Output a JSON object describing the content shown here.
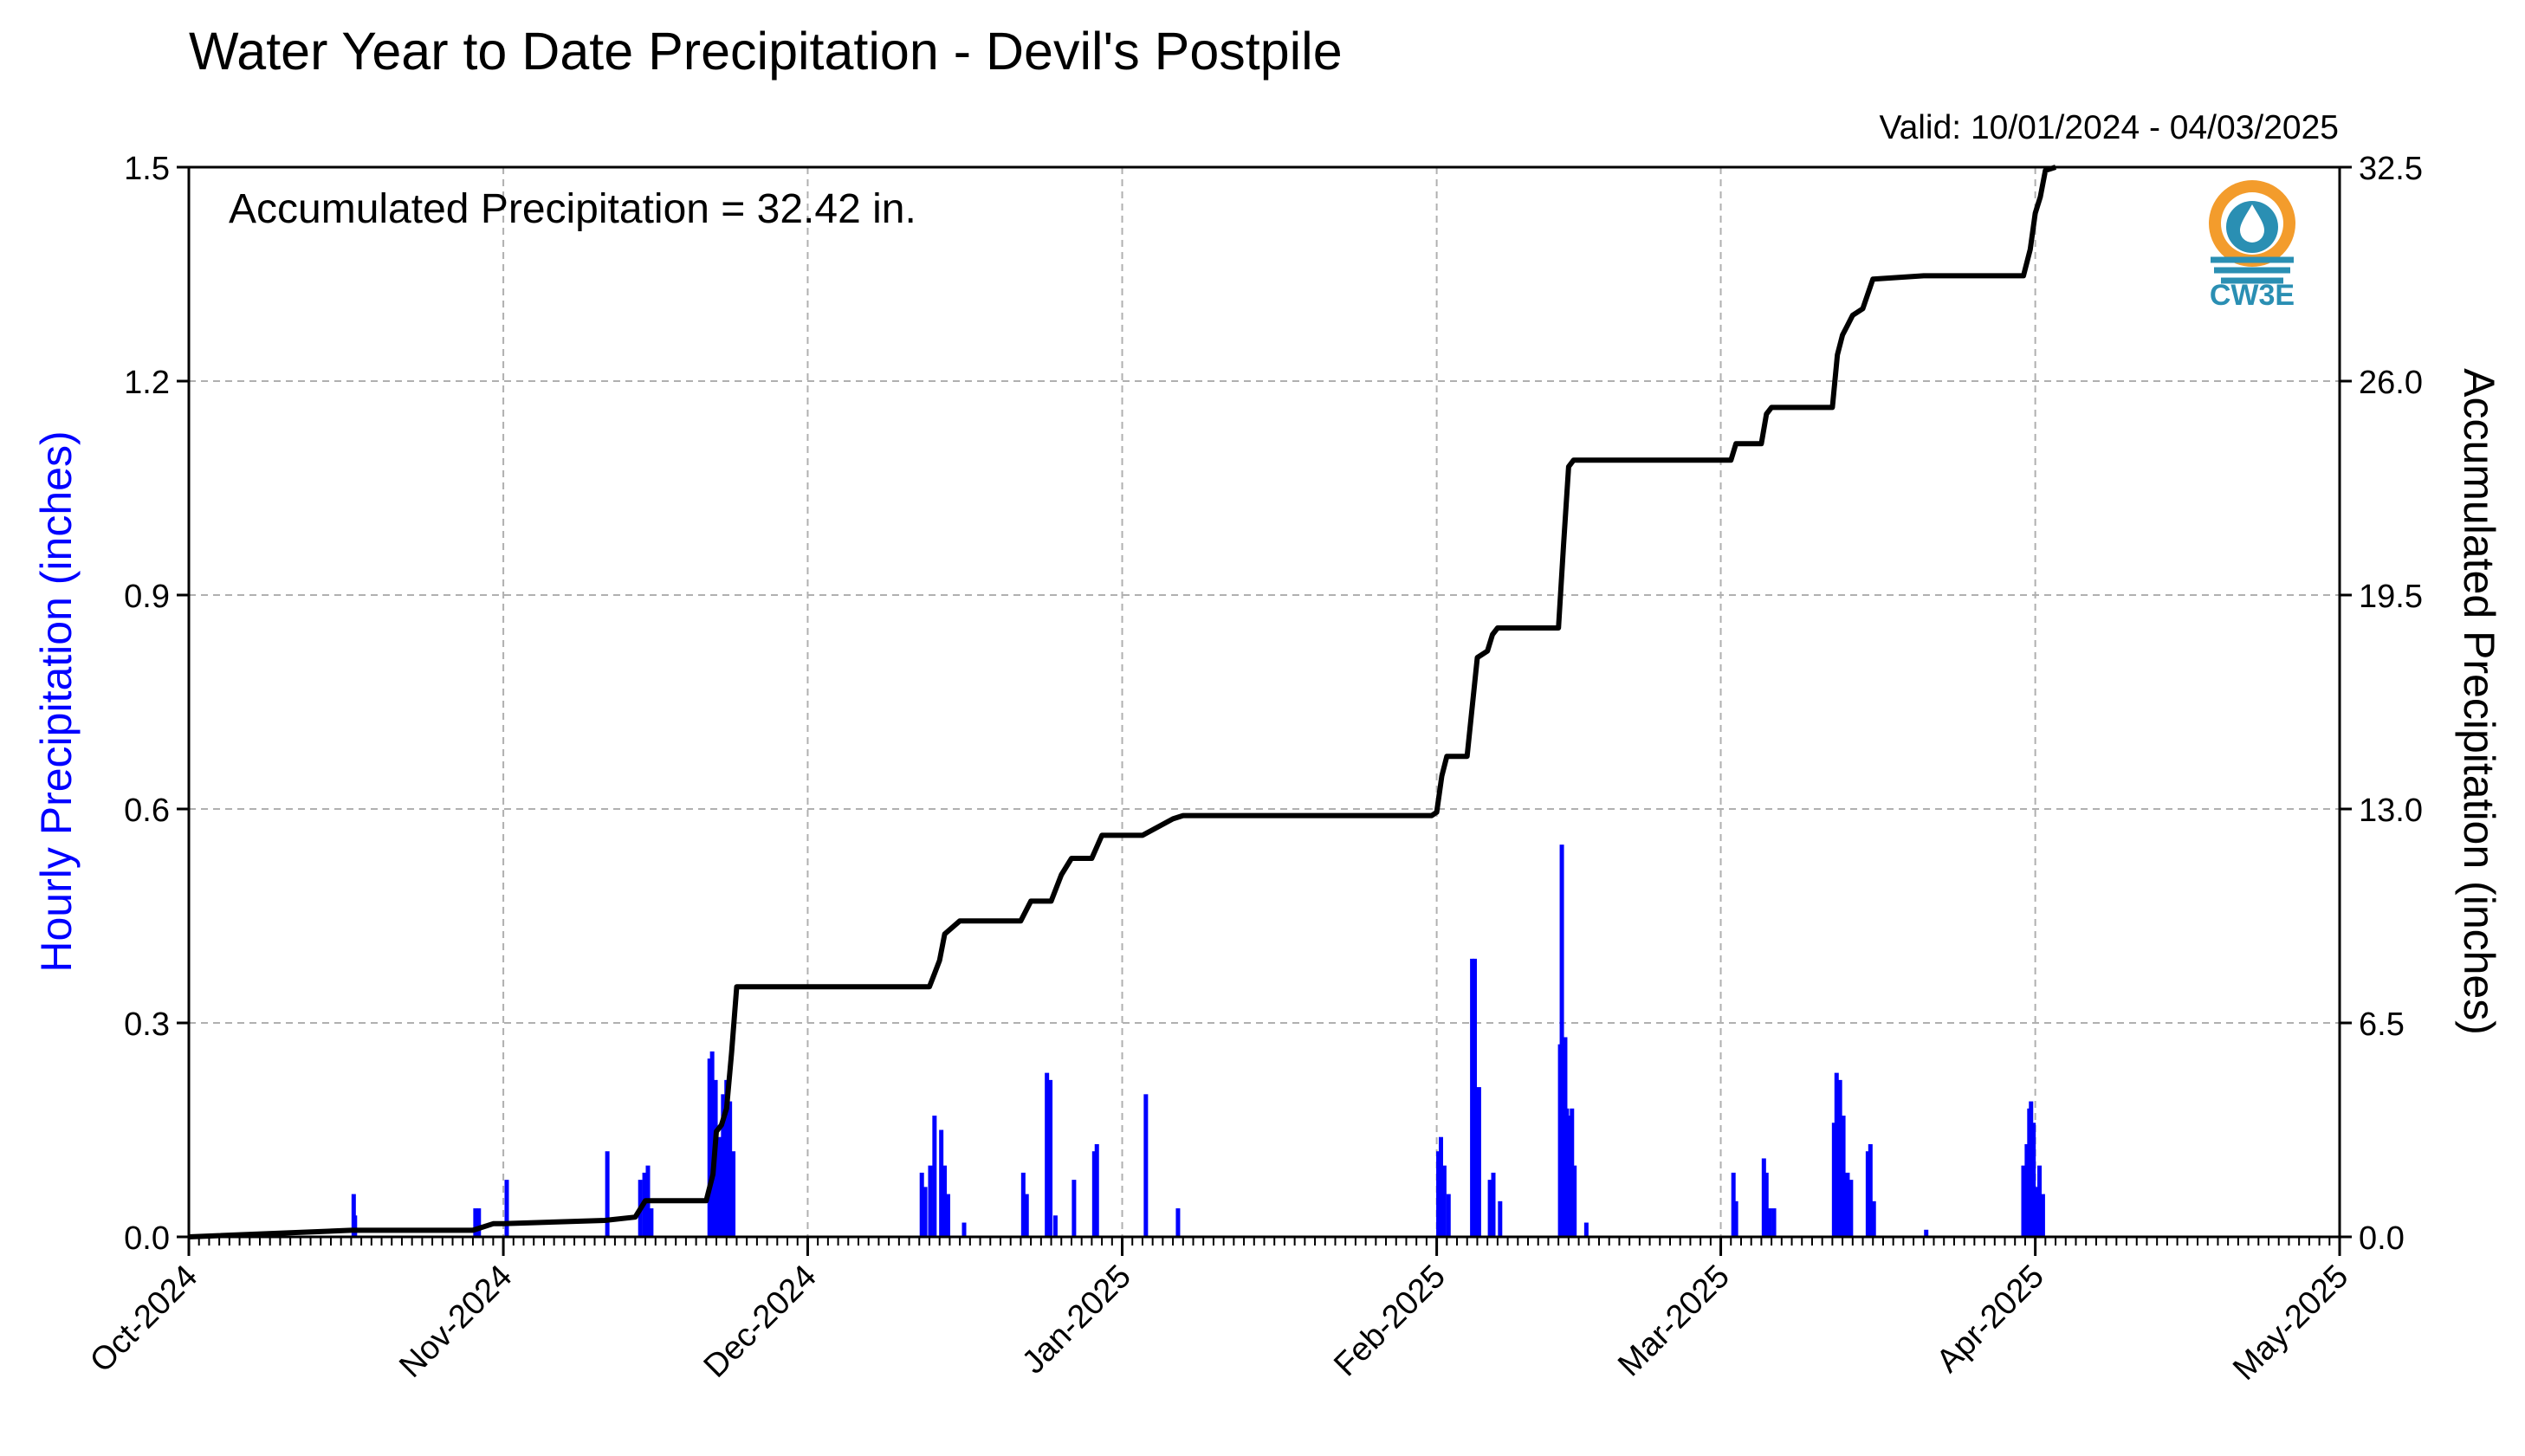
{
  "chart_data": {
    "type": "bar",
    "title": "Water Year to Date Precipitation - Devil's Postpile",
    "subtitle": "Valid: 10/01/2024 - 04/03/2025",
    "annotation": "Accumulated Precipitation = 32.42 in.",
    "logo_text": "CW3E",
    "colors": {
      "bars": "#0000ff",
      "line": "#000000",
      "grid": "#b0b0b0",
      "logo_orange": "#f39c2c",
      "logo_teal": "#2a8fb3"
    },
    "x_range": [
      "2024-10-01",
      "2025-05-01"
    ],
    "x_ticks": [
      "Oct-2024",
      "Nov-2024",
      "Dec-2024",
      "Jan-2025",
      "Feb-2025",
      "Mar-2025",
      "Apr-2025",
      "May-2025"
    ],
    "grid": true,
    "left_axis": {
      "label": "Hourly Precipitation (inches)",
      "ylim": [
        0,
        1.5
      ],
      "ticks": [
        "0.0",
        "0.3",
        "0.6",
        "0.9",
        "1.2",
        "1.5"
      ]
    },
    "right_axis": {
      "label": "Accumulated Precipitation (inches)",
      "ylim": [
        0,
        32.5
      ],
      "ticks": [
        "0.0",
        "6.5",
        "13.0",
        "19.5",
        "26.0",
        "32.5"
      ]
    },
    "series": [
      {
        "type": "bar",
        "axis": "left",
        "x": [
          "2024-10-17T06",
          "2024-10-17T09",
          "2024-10-29T06",
          "2024-10-29T14",
          "2024-11-01T08",
          "2024-11-11T06",
          "2024-11-14T12",
          "2024-11-14T22",
          "2024-11-15T06",
          "2024-11-15T14",
          "2024-11-21T08",
          "2024-11-21T14",
          "2024-11-21T22",
          "2024-11-22T08",
          "2024-11-22T16",
          "2024-11-23T00",
          "2024-11-23T08",
          "2024-11-23T16",
          "2024-12-12T06",
          "2024-12-12T14",
          "2024-12-13T02",
          "2024-12-13T12",
          "2024-12-14T04",
          "2024-12-14T12",
          "2024-12-14T20",
          "2024-12-16T10",
          "2024-12-22T06",
          "2024-12-22T14",
          "2024-12-24T14",
          "2024-12-24T22",
          "2024-12-25T10",
          "2024-12-27T06",
          "2024-12-29T06",
          "2024-12-29T12",
          "2025-01-03T08",
          "2025-01-06T12",
          "2025-02-01T04",
          "2025-02-01T10",
          "2025-02-01T18",
          "2025-02-02T04",
          "2025-02-04T12",
          "2025-02-04T18",
          "2025-02-05T04",
          "2025-02-06T06",
          "2025-02-06T14",
          "2025-02-07T06",
          "2025-02-13T04",
          "2025-02-13T08",
          "2025-02-13T16",
          "2025-02-13T20",
          "2025-02-14T04",
          "2025-02-14T08",
          "2025-02-14T14",
          "2025-02-15T18",
          "2025-03-02T06",
          "2025-03-02T12",
          "2025-03-05T06",
          "2025-03-05T12",
          "2025-03-05T20",
          "2025-03-06T06",
          "2025-03-12T04",
          "2025-03-12T10",
          "2025-03-12T18",
          "2025-03-13T02",
          "2025-03-13T12",
          "2025-03-13T20",
          "2025-03-15T12",
          "2025-03-15T18",
          "2025-03-16T02",
          "2025-03-21T06",
          "2025-03-30T20",
          "2025-03-31T04",
          "2025-03-31T10",
          "2025-03-31T14",
          "2025-03-31T20",
          "2025-04-01T04",
          "2025-04-01T10",
          "2025-04-01T18"
        ],
        "values": [
          0.06,
          0.03,
          0.04,
          0.04,
          0.08,
          0.12,
          0.08,
          0.09,
          0.1,
          0.04,
          0.25,
          0.26,
          0.22,
          0.14,
          0.2,
          0.22,
          0.19,
          0.12,
          0.09,
          0.07,
          0.1,
          0.17,
          0.15,
          0.1,
          0.06,
          0.02,
          0.09,
          0.06,
          0.23,
          0.22,
          0.03,
          0.08,
          0.12,
          0.13,
          0.2,
          0.04,
          0.12,
          0.14,
          0.1,
          0.06,
          0.39,
          0.39,
          0.21,
          0.08,
          0.09,
          0.05,
          0.27,
          0.55,
          0.28,
          0.18,
          0.17,
          0.18,
          0.1,
          0.02,
          0.09,
          0.05,
          0.11,
          0.09,
          0.04,
          0.04,
          0.16,
          0.23,
          0.22,
          0.17,
          0.09,
          0.08,
          0.12,
          0.13,
          0.05,
          0.01,
          0.1,
          0.13,
          0.18,
          0.19,
          0.16,
          0.07,
          0.1,
          0.06
        ]
      },
      {
        "type": "line",
        "axis": "right",
        "x": [
          "2024-10-01",
          "2024-10-17",
          "2024-10-29",
          "2024-10-31",
          "2024-11-01",
          "2024-11-11",
          "2024-11-14",
          "2024-11-15",
          "2024-11-21",
          "2024-11-21T16",
          "2024-11-22",
          "2024-11-22T12",
          "2024-11-23",
          "2024-11-23T12",
          "2024-11-24",
          "2024-12-13",
          "2024-12-13T12",
          "2024-12-14",
          "2024-12-14T12",
          "2024-12-16",
          "2024-12-22",
          "2024-12-23",
          "2024-12-25",
          "2024-12-26",
          "2024-12-27",
          "2024-12-29",
          "2024-12-30",
          "2025-01-03",
          "2025-01-06",
          "2025-01-07",
          "2025-01-31T12",
          "2025-02-01",
          "2025-02-01T12",
          "2025-02-02",
          "2025-02-04",
          "2025-02-05",
          "2025-02-06",
          "2025-02-06T12",
          "2025-02-07",
          "2025-02-13",
          "2025-02-13T12",
          "2025-02-14",
          "2025-02-14T12",
          "2025-02-15",
          "2025-03-02",
          "2025-03-02T12",
          "2025-03-05",
          "2025-03-05T12",
          "2025-03-06",
          "2025-03-12",
          "2025-03-12T12",
          "2025-03-13",
          "2025-03-13T12",
          "2025-03-14",
          "2025-03-15",
          "2025-03-16",
          "2025-03-21",
          "2025-03-30T20",
          "2025-03-31T12",
          "2025-04-01",
          "2025-04-01T12",
          "2025-04-02",
          "2025-04-03"
        ],
        "values": [
          0.0,
          0.2,
          0.2,
          0.4,
          0.4,
          0.5,
          0.6,
          1.1,
          1.1,
          1.9,
          3.2,
          3.4,
          3.9,
          5.6,
          7.6,
          7.6,
          8.0,
          8.4,
          9.2,
          9.6,
          9.6,
          10.2,
          10.2,
          11.0,
          11.5,
          11.5,
          12.2,
          12.2,
          12.7,
          12.8,
          12.8,
          12.9,
          14.0,
          14.6,
          14.6,
          17.6,
          17.8,
          18.3,
          18.5,
          18.5,
          21.0,
          23.4,
          23.6,
          23.6,
          23.6,
          24.1,
          24.1,
          25.0,
          25.2,
          25.2,
          26.8,
          27.4,
          27.7,
          28.0,
          28.2,
          29.1,
          29.2,
          29.2,
          30.0,
          31.1,
          31.6,
          32.4,
          32.5
        ]
      }
    ]
  }
}
